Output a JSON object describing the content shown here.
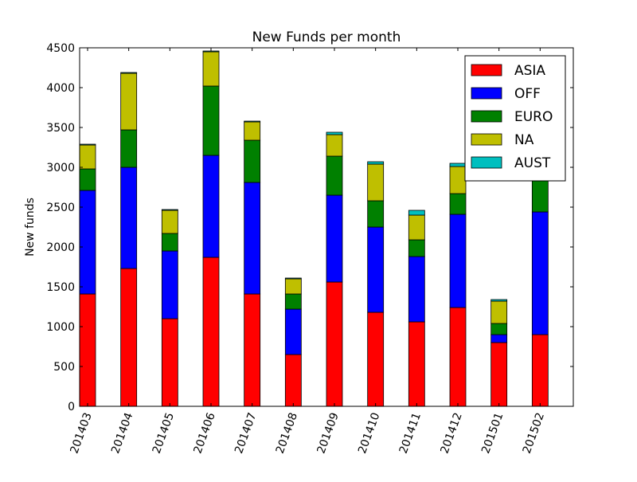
{
  "chart_data": {
    "type": "bar",
    "stacked": true,
    "title": "New Funds per month",
    "xlabel": "",
    "ylabel": "New funds",
    "ylim": [
      0,
      4500
    ],
    "yticks": [
      "0",
      "500",
      "1000",
      "1500",
      "2000",
      "2500",
      "3000",
      "3500",
      "4000",
      "4500"
    ],
    "categories": [
      "201403",
      "201404",
      "201405",
      "201406",
      "201407",
      "201408",
      "201409",
      "201410",
      "201411",
      "201412",
      "201501",
      "201502"
    ],
    "series": [
      {
        "name": "ASIA",
        "color": "#ff0000",
        "values": [
          1410,
          1730,
          1100,
          1870,
          1410,
          650,
          1560,
          1180,
          1060,
          1240,
          800,
          900
        ]
      },
      {
        "name": "OFF",
        "color": "#0000ff",
        "values": [
          1300,
          1270,
          850,
          1280,
          1400,
          570,
          1090,
          1070,
          820,
          1170,
          100,
          1540
        ]
      },
      {
        "name": "EURO",
        "color": "#008000",
        "values": [
          270,
          470,
          220,
          870,
          530,
          190,
          490,
          330,
          210,
          260,
          140,
          600
        ]
      },
      {
        "name": "NA",
        "color": "#bfbf00",
        "values": [
          300,
          710,
          290,
          430,
          230,
          190,
          270,
          460,
          310,
          340,
          280,
          420
        ]
      },
      {
        "name": "AUST",
        "color": "#00bfbf",
        "values": [
          10,
          10,
          10,
          10,
          10,
          10,
          30,
          30,
          60,
          40,
          20,
          20
        ]
      }
    ],
    "legend_position": "top-right",
    "grid": false
  }
}
